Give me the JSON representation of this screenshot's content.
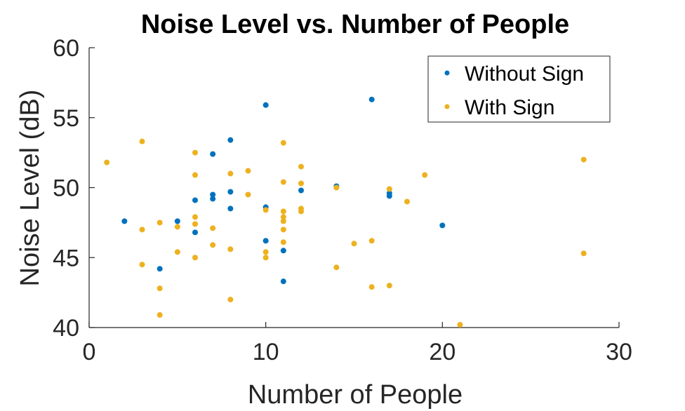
{
  "chart_data": {
    "type": "scatter",
    "title": "Noise Level vs. Number of People",
    "xlabel": "Number of People",
    "ylabel": "Noise Level (dB)",
    "xlim": [
      0,
      30
    ],
    "ylim": [
      40,
      60
    ],
    "xticks": [
      0,
      10,
      20,
      30
    ],
    "yticks": [
      40,
      45,
      50,
      55,
      60
    ],
    "grid": false,
    "legend_position": "top-right",
    "series": [
      {
        "name": "Without Sign",
        "color": "#0072BD",
        "points": [
          [
            2,
            47.6
          ],
          [
            4,
            44.2
          ],
          [
            5,
            47.6
          ],
          [
            6,
            49.1
          ],
          [
            6,
            46.8
          ],
          [
            7,
            52.4
          ],
          [
            7,
            49.5
          ],
          [
            7,
            49.2
          ],
          [
            8,
            53.4
          ],
          [
            8,
            49.7
          ],
          [
            8,
            48.5
          ],
          [
            10,
            55.9
          ],
          [
            10,
            48.6
          ],
          [
            10,
            46.2
          ],
          [
            11,
            45.5
          ],
          [
            11,
            43.3
          ],
          [
            12,
            49.8
          ],
          [
            14,
            50.1
          ],
          [
            16,
            56.3
          ],
          [
            17,
            49.4
          ],
          [
            17,
            49.6
          ],
          [
            20,
            47.3
          ]
        ]
      },
      {
        "name": "With Sign",
        "color": "#EDB120",
        "points": [
          [
            1,
            51.8
          ],
          [
            3,
            53.3
          ],
          [
            3,
            47.0
          ],
          [
            3,
            44.5
          ],
          [
            4,
            47.5
          ],
          [
            4,
            42.8
          ],
          [
            4,
            40.9
          ],
          [
            5,
            47.2
          ],
          [
            5,
            45.4
          ],
          [
            6,
            52.5
          ],
          [
            6,
            50.9
          ],
          [
            6,
            47.9
          ],
          [
            6,
            47.4
          ],
          [
            6,
            45.0
          ],
          [
            7,
            47.1
          ],
          [
            7,
            45.9
          ],
          [
            8,
            51.0
          ],
          [
            8,
            45.6
          ],
          [
            8,
            42.0
          ],
          [
            9,
            51.2
          ],
          [
            9,
            49.5
          ],
          [
            10,
            48.4
          ],
          [
            10,
            45.4
          ],
          [
            10,
            45.0
          ],
          [
            11,
            53.2
          ],
          [
            11,
            50.4
          ],
          [
            11,
            48.3
          ],
          [
            11,
            47.9
          ],
          [
            11,
            47.6
          ],
          [
            11,
            47.0
          ],
          [
            11,
            46.1
          ],
          [
            12,
            51.5
          ],
          [
            12,
            50.3
          ],
          [
            12,
            48.5
          ],
          [
            12,
            48.3
          ],
          [
            14,
            50.0
          ],
          [
            14,
            44.3
          ],
          [
            15,
            46.0
          ],
          [
            16,
            46.2
          ],
          [
            16,
            42.9
          ],
          [
            17,
            49.9
          ],
          [
            17,
            43.0
          ],
          [
            18,
            49.0
          ],
          [
            19,
            50.9
          ],
          [
            21,
            40.2
          ],
          [
            28,
            52.0
          ],
          [
            28,
            45.3
          ]
        ]
      }
    ]
  }
}
